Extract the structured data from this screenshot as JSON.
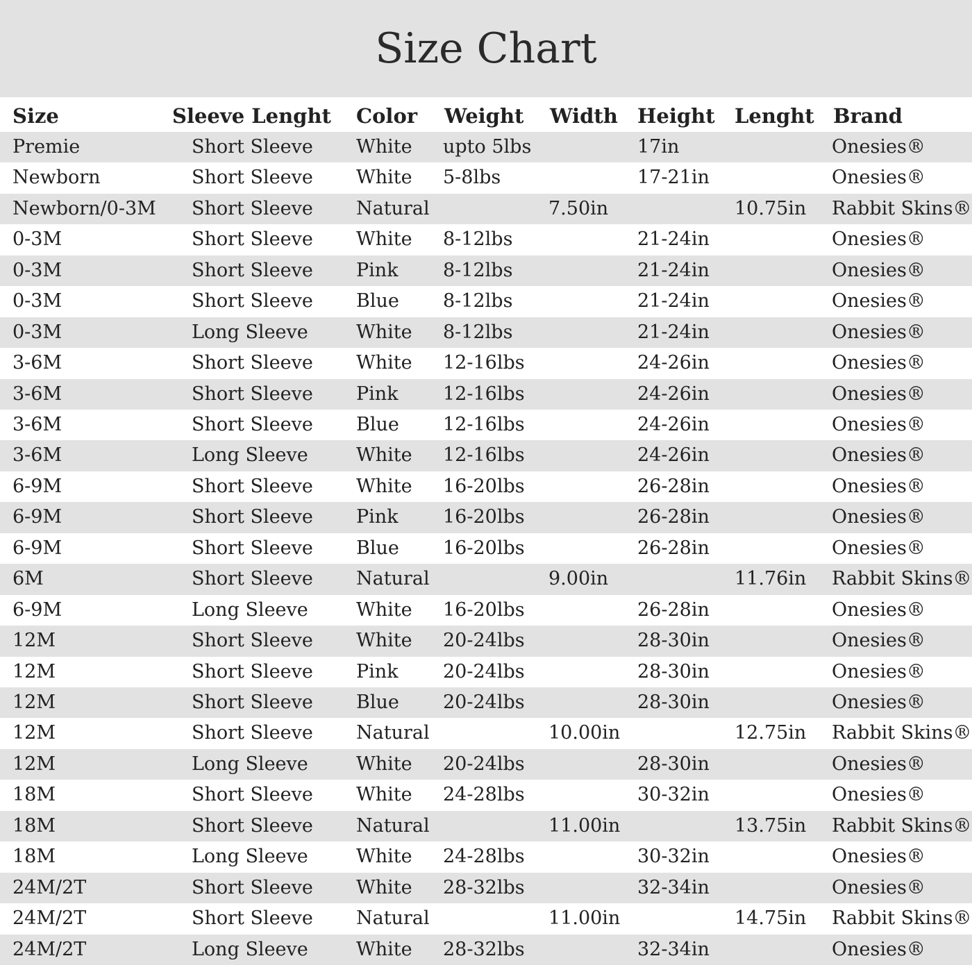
{
  "header": {
    "title": "Size Chart"
  },
  "table": {
    "columns": [
      "Size",
      "Sleeve Lenght",
      "Color",
      "Weight",
      "Width",
      "Height",
      "Lenght",
      "Brand"
    ],
    "rows": [
      [
        "Premie",
        "Short Sleeve",
        "White",
        "upto 5lbs",
        null,
        "17in",
        null,
        "Onesies®"
      ],
      [
        "Newborn",
        "Short Sleeve",
        "White",
        "5-8lbs",
        null,
        "17-21in",
        null,
        "Onesies®"
      ],
      [
        "Newborn/0-3M",
        "Short Sleeve",
        "Natural",
        null,
        "7.50in",
        null,
        "10.75in",
        "Rabbit Skins®"
      ],
      [
        "0-3M",
        "Short Sleeve",
        "White",
        "8-12lbs",
        null,
        "21-24in",
        null,
        "Onesies®"
      ],
      [
        "0-3M",
        "Short Sleeve",
        "Pink",
        "8-12lbs",
        null,
        "21-24in",
        null,
        "Onesies®"
      ],
      [
        "0-3M",
        "Short Sleeve",
        "Blue",
        "8-12lbs",
        null,
        "21-24in",
        null,
        "Onesies®"
      ],
      [
        "0-3M",
        "Long Sleeve",
        "White",
        "8-12lbs",
        null,
        "21-24in",
        null,
        "Onesies®"
      ],
      [
        "3-6M",
        "Short Sleeve",
        "White",
        "12-16lbs",
        null,
        "24-26in",
        null,
        "Onesies®"
      ],
      [
        "3-6M",
        "Short Sleeve",
        "Pink",
        "12-16lbs",
        null,
        "24-26in",
        null,
        "Onesies®"
      ],
      [
        "3-6M",
        "Short Sleeve",
        "Blue",
        "12-16lbs",
        null,
        "24-26in",
        null,
        "Onesies®"
      ],
      [
        "3-6M",
        "Long Sleeve",
        "White",
        "12-16lbs",
        null,
        "24-26in",
        null,
        "Onesies®"
      ],
      [
        "6-9M",
        "Short Sleeve",
        "White",
        "16-20lbs",
        null,
        "26-28in",
        null,
        "Onesies®"
      ],
      [
        "6-9M",
        "Short Sleeve",
        "Pink",
        "16-20lbs",
        null,
        "26-28in",
        null,
        "Onesies®"
      ],
      [
        "6-9M",
        "Short Sleeve",
        "Blue",
        "16-20lbs",
        null,
        "26-28in",
        null,
        "Onesies®"
      ],
      [
        "6M",
        "Short Sleeve",
        "Natural",
        null,
        "9.00in",
        null,
        "11.76in",
        "Rabbit Skins®"
      ],
      [
        "6-9M",
        "Long Sleeve",
        "White",
        "16-20lbs",
        null,
        "26-28in",
        null,
        "Onesies®"
      ],
      [
        "12M",
        "Short Sleeve",
        "White",
        "20-24lbs",
        null,
        "28-30in",
        null,
        "Onesies®"
      ],
      [
        "12M",
        "Short Sleeve",
        "Pink",
        "20-24lbs",
        null,
        "28-30in",
        null,
        "Onesies®"
      ],
      [
        "12M",
        "Short Sleeve",
        "Blue",
        "20-24lbs",
        null,
        "28-30in",
        null,
        "Onesies®"
      ],
      [
        "12M",
        "Short Sleeve",
        "Natural",
        null,
        "10.00in",
        null,
        "12.75in",
        "Rabbit Skins®"
      ],
      [
        "12M",
        "Long Sleeve",
        "White",
        "20-24lbs",
        null,
        "28-30in",
        null,
        "Onesies®"
      ],
      [
        "18M",
        "Short Sleeve",
        "White",
        "24-28lbs",
        null,
        "30-32in",
        null,
        "Onesies®"
      ],
      [
        "18M",
        "Short Sleeve",
        "Natural",
        null,
        "11.00in",
        null,
        "13.75in",
        "Rabbit Skins®"
      ],
      [
        "18M",
        "Long Sleeve",
        "White",
        "24-28lbs",
        null,
        "30-32in",
        null,
        "Onesies®"
      ],
      [
        "24M/2T",
        "Short Sleeve",
        "White",
        "28-32lbs",
        null,
        "32-34in",
        null,
        "Onesies®"
      ],
      [
        "24M/2T",
        "Short Sleeve",
        "Natural",
        null,
        "11.00in",
        null,
        "14.75in",
        "Rabbit Skins®"
      ],
      [
        "24M/2T",
        "Long Sleeve",
        "White",
        "28-32lbs",
        null,
        "32-34in",
        null,
        "Onesies®"
      ]
    ]
  }
}
